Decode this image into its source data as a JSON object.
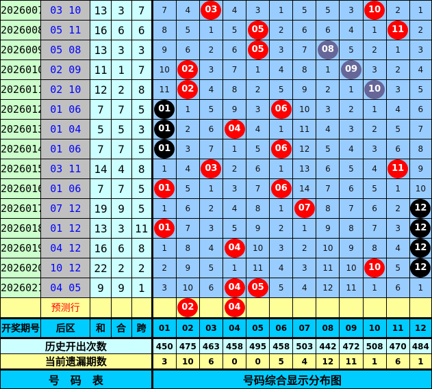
{
  "colors": {
    "hit": "#ff0000",
    "repeat": "#000000",
    "adjacent": "#666699",
    "grid": "#99ccff",
    "period_bg": "#ccffcc",
    "back_bg": "#c0c0c0",
    "back_text": "#0000ff",
    "header_bg": "#00ccff",
    "highlight": "#ffff99"
  },
  "rows": [
    {
      "period": "2026007",
      "back": "03 10",
      "sum": "13",
      "he": "3",
      "kua": "7",
      "cells": [
        "7",
        "4",
        {
          "b": "03",
          "c": "red"
        },
        "4",
        "3",
        "1",
        "5",
        "5",
        "3",
        {
          "b": "10",
          "c": "red"
        },
        "2",
        "1"
      ]
    },
    {
      "period": "2026008",
      "back": "05 11",
      "sum": "16",
      "he": "6",
      "kua": "6",
      "cells": [
        "8",
        "5",
        "1",
        "5",
        {
          "b": "05",
          "c": "red"
        },
        "2",
        "6",
        "6",
        "4",
        "1",
        {
          "b": "11",
          "c": "red"
        },
        "2"
      ]
    },
    {
      "period": "2026009",
      "back": "05 08",
      "sum": "13",
      "he": "3",
      "kua": "3",
      "cells": [
        "9",
        "6",
        "2",
        "6",
        {
          "b": "05",
          "c": "red"
        },
        "3",
        "7",
        {
          "b": "08",
          "c": "purple"
        },
        "5",
        "2",
        "1",
        "3"
      ]
    },
    {
      "period": "2026010",
      "back": "02 09",
      "sum": "11",
      "he": "1",
      "kua": "7",
      "cells": [
        "10",
        {
          "b": "02",
          "c": "red"
        },
        "3",
        "7",
        "1",
        "4",
        "8",
        "1",
        {
          "b": "09",
          "c": "purple"
        },
        "3",
        "2",
        "4"
      ]
    },
    {
      "period": "2026011",
      "back": "02 10",
      "sum": "12",
      "he": "2",
      "kua": "8",
      "cells": [
        "11",
        {
          "b": "02",
          "c": "red"
        },
        "4",
        "8",
        "2",
        "5",
        "9",
        "2",
        "1",
        {
          "b": "10",
          "c": "purple"
        },
        "3",
        "5"
      ]
    },
    {
      "period": "2026012",
      "back": "01 06",
      "sum": "7",
      "he": "7",
      "kua": "5",
      "cells": [
        {
          "b": "01",
          "c": "black"
        },
        "1",
        "5",
        "9",
        "3",
        {
          "b": "06",
          "c": "red"
        },
        "10",
        "3",
        "2",
        "1",
        "4",
        "6"
      ]
    },
    {
      "period": "2026013",
      "back": "01 04",
      "sum": "5",
      "he": "5",
      "kua": "3",
      "cells": [
        {
          "b": "01",
          "c": "black"
        },
        "2",
        "6",
        {
          "b": "04",
          "c": "red"
        },
        "4",
        "1",
        "11",
        "4",
        "3",
        "2",
        "5",
        "7"
      ]
    },
    {
      "period": "2026014",
      "back": "01 06",
      "sum": "7",
      "he": "7",
      "kua": "5",
      "cells": [
        {
          "b": "01",
          "c": "black"
        },
        "3",
        "7",
        "1",
        "5",
        {
          "b": "06",
          "c": "red"
        },
        "12",
        "5",
        "4",
        "3",
        "6",
        "8"
      ]
    },
    {
      "period": "2026015",
      "back": "03 11",
      "sum": "14",
      "he": "4",
      "kua": "8",
      "cells": [
        "1",
        "4",
        {
          "b": "03",
          "c": "red"
        },
        "2",
        "6",
        "1",
        "13",
        "6",
        "5",
        "4",
        {
          "b": "11",
          "c": "red"
        },
        "9"
      ]
    },
    {
      "period": "2026016",
      "back": "01 06",
      "sum": "7",
      "he": "7",
      "kua": "5",
      "cells": [
        {
          "b": "01",
          "c": "red"
        },
        "5",
        "1",
        "3",
        "7",
        {
          "b": "06",
          "c": "red"
        },
        "14",
        "7",
        "6",
        "5",
        "1",
        "10"
      ]
    },
    {
      "period": "2026017",
      "back": "07 12",
      "sum": "19",
      "he": "9",
      "kua": "5",
      "cells": [
        "1",
        "6",
        "2",
        "4",
        "8",
        "1",
        {
          "b": "07",
          "c": "red"
        },
        "8",
        "7",
        "6",
        "2",
        {
          "b": "12",
          "c": "black"
        }
      ]
    },
    {
      "period": "2026018",
      "back": "01 12",
      "sum": "13",
      "he": "3",
      "kua": "11",
      "cells": [
        {
          "b": "01",
          "c": "red"
        },
        "7",
        "3",
        "5",
        "9",
        "2",
        "1",
        "9",
        "8",
        "7",
        "3",
        {
          "b": "12",
          "c": "black"
        }
      ]
    },
    {
      "period": "2026019",
      "back": "04 12",
      "sum": "16",
      "he": "6",
      "kua": "8",
      "cells": [
        "1",
        "8",
        "4",
        {
          "b": "04",
          "c": "red"
        },
        "10",
        "3",
        "2",
        "10",
        "9",
        "8",
        "4",
        {
          "b": "12",
          "c": "black"
        }
      ]
    },
    {
      "period": "2026020",
      "back": "10 12",
      "sum": "22",
      "he": "2",
      "kua": "2",
      "cells": [
        "2",
        "9",
        "5",
        "1",
        "11",
        "4",
        "3",
        "11",
        "10",
        {
          "b": "10",
          "c": "red"
        },
        "5",
        {
          "b": "12",
          "c": "black"
        }
      ]
    },
    {
      "period": "2026021",
      "back": "04 05",
      "sum": "9",
      "he": "9",
      "kua": "1",
      "cells": [
        "3",
        "10",
        "6",
        {
          "b": "04",
          "c": "red"
        },
        {
          "b": "05",
          "c": "red"
        },
        "5",
        "4",
        "12",
        "11",
        "1",
        "6",
        "1"
      ]
    }
  ],
  "prediction": {
    "label": "预测行",
    "cells": [
      "",
      {
        "b": "02",
        "c": "red"
      },
      "",
      {
        "b": "04",
        "c": "red"
      },
      "",
      "",
      "",
      "",
      "",
      "",
      "",
      ""
    ]
  },
  "header": {
    "period": "开奖期号",
    "back": "后区",
    "sum": "和",
    "he": "合",
    "kua": "跨",
    "numbers": [
      "01",
      "02",
      "03",
      "04",
      "05",
      "06",
      "07",
      "08",
      "09",
      "10",
      "11",
      "12"
    ]
  },
  "history": {
    "label": "历史开出次数",
    "values": [
      "450",
      "475",
      "463",
      "458",
      "495",
      "458",
      "503",
      "442",
      "472",
      "508",
      "470",
      "484"
    ]
  },
  "current_miss": {
    "label": "当前遗漏期数",
    "values": [
      "3",
      "10",
      "6",
      "0",
      "0",
      "5",
      "4",
      "12",
      "11",
      "1",
      "6",
      "1"
    ]
  },
  "footer": {
    "left": "号　码　表",
    "right": "号码综合显示分布图"
  }
}
